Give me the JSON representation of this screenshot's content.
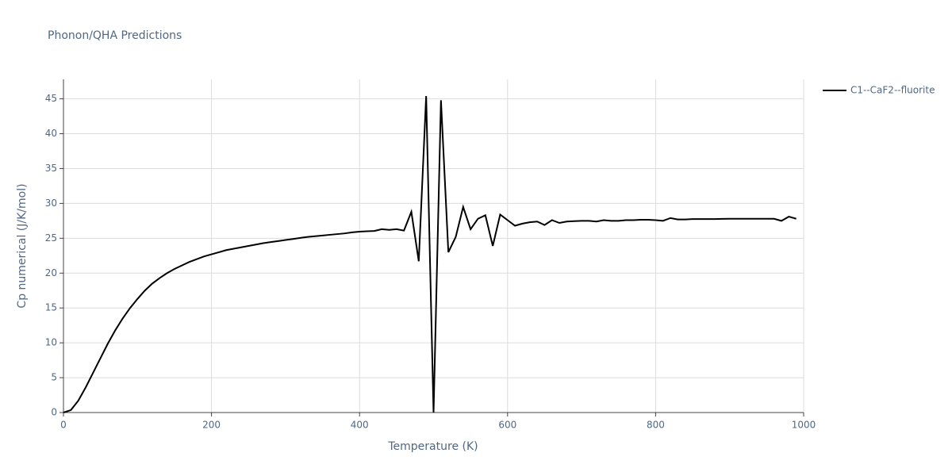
{
  "chart_data": {
    "type": "line",
    "title": "Phonon/QHA Predictions",
    "x_label": "Temperature (K)",
    "y_label": "Cp numerical (J/K/mol)",
    "x": [
      0,
      10,
      20,
      30,
      40,
      50,
      60,
      70,
      80,
      90,
      100,
      110,
      120,
      130,
      140,
      150,
      160,
      170,
      180,
      190,
      200,
      210,
      220,
      230,
      240,
      250,
      260,
      270,
      280,
      290,
      300,
      310,
      320,
      330,
      340,
      350,
      360,
      370,
      380,
      390,
      400,
      410,
      420,
      430,
      440,
      450,
      460,
      470,
      480,
      490,
      500,
      510,
      520,
      530,
      540,
      550,
      560,
      570,
      580,
      590,
      600,
      610,
      620,
      630,
      640,
      650,
      660,
      670,
      680,
      690,
      700,
      710,
      720,
      730,
      740,
      750,
      760,
      770,
      780,
      790,
      800,
      810,
      820,
      830,
      840,
      850,
      860,
      870,
      880,
      890,
      900,
      910,
      920,
      930,
      940,
      950,
      960,
      970,
      980,
      990
    ],
    "series": [
      {
        "name": "C1--CaF2--fluorite",
        "color": "#000000",
        "values": [
          0,
          0.35,
          1.7,
          3.6,
          5.7,
          7.8,
          9.9,
          11.8,
          13.5,
          15.0,
          16.3,
          17.5,
          18.5,
          19.3,
          20.0,
          20.6,
          21.1,
          21.6,
          22.0,
          22.4,
          22.7,
          23.0,
          23.3,
          23.5,
          23.7,
          23.9,
          24.1,
          24.3,
          24.45,
          24.6,
          24.75,
          24.9,
          25.05,
          25.2,
          25.3,
          25.4,
          25.5,
          25.6,
          25.7,
          25.85,
          25.95,
          26.0,
          26.05,
          26.3,
          26.2,
          26.3,
          26.1,
          28.8,
          21.7,
          45.4,
          0,
          44.8,
          23.0,
          25.2,
          29.5,
          26.3,
          27.8,
          28.3,
          23.9,
          28.4,
          27.6,
          26.8,
          27.1,
          27.3,
          27.4,
          26.9,
          27.6,
          27.2,
          27.4,
          27.45,
          27.5,
          27.5,
          27.4,
          27.6,
          27.5,
          27.5,
          27.6,
          27.6,
          27.65,
          27.65,
          27.6,
          27.5,
          27.9,
          27.7,
          27.7,
          27.75,
          27.75,
          27.75,
          27.75,
          27.78,
          27.8,
          27.8,
          27.8,
          27.8,
          27.8,
          27.8,
          27.8,
          27.5,
          28.1,
          27.8
        ]
      }
    ],
    "xlim": [
      0,
      1000
    ],
    "xticks": [
      0,
      200,
      400,
      600,
      800,
      1000
    ],
    "ylim": [
      0,
      47.8
    ],
    "yticks": [
      0,
      5,
      10,
      15,
      20,
      25,
      30,
      35,
      40,
      45
    ],
    "grid": true,
    "legend": "right"
  }
}
